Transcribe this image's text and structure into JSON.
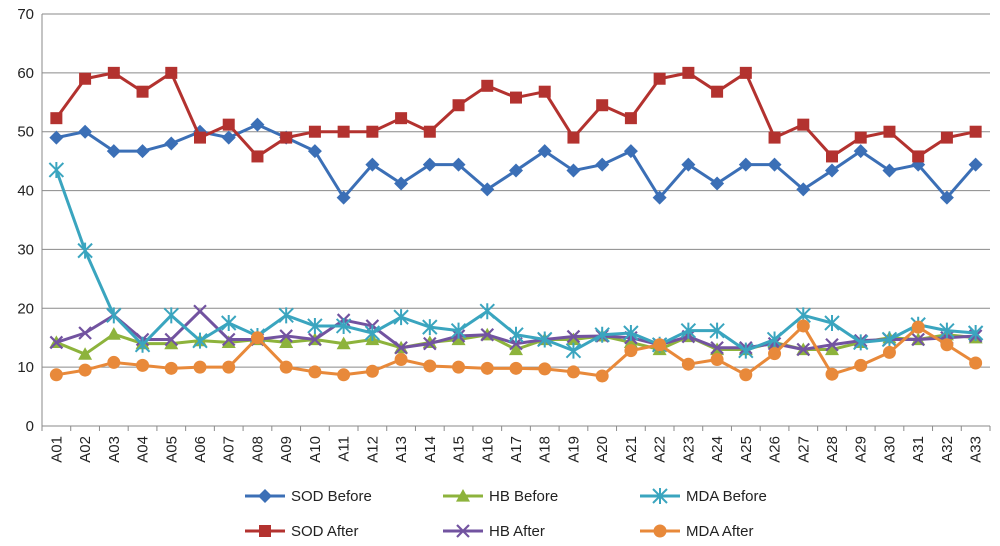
{
  "chart_data": {
    "type": "line",
    "title": "",
    "xlabel": "",
    "ylabel": "",
    "ylim": [
      0,
      70
    ],
    "yticks": [
      0,
      10,
      20,
      30,
      40,
      50,
      60,
      70
    ],
    "grid": "horizontal",
    "legend_position": "bottom",
    "categories": [
      "A01",
      "A02",
      "A03",
      "A04",
      "A05",
      "A06",
      "A07",
      "A08",
      "A09",
      "A10",
      "A11",
      "A12",
      "A13",
      "A14",
      "A15",
      "A16",
      "A17",
      "A18",
      "A19",
      "A20",
      "A21",
      "A22",
      "A23",
      "A24",
      "A25",
      "A26",
      "A27",
      "A28",
      "A29",
      "A30",
      "A31",
      "A32",
      "A33"
    ],
    "series": [
      {
        "name": "SOD Before",
        "color": "#3b6fb6",
        "marker": "diamond",
        "values": [
          49,
          50,
          46.7,
          46.7,
          48,
          50,
          49,
          51.2,
          49,
          46.7,
          38.8,
          44.4,
          41.2,
          44.4,
          44.4,
          40.2,
          43.4,
          46.7,
          43.4,
          44.4,
          46.7,
          38.8,
          44.4,
          41.2,
          44.4,
          44.4,
          40.2,
          43.4,
          46.7,
          43.4,
          44.4,
          38.8,
          44.4
        ]
      },
      {
        "name": "SOD After",
        "color": "#b3322f",
        "marker": "square",
        "values": [
          52.3,
          59,
          60,
          56.8,
          60,
          49,
          51.2,
          45.8,
          49,
          50,
          50,
          50,
          52.3,
          50,
          54.5,
          57.8,
          55.8,
          56.8,
          49,
          54.5,
          52.3,
          59,
          60,
          56.8,
          60,
          49,
          51.2,
          45.8,
          49,
          50,
          45.8,
          49,
          50
        ]
      },
      {
        "name": "HB Before",
        "color": "#8db33c",
        "marker": "triangle",
        "values": [
          14.2,
          12.2,
          15.6,
          14,
          14,
          14.5,
          14.2,
          14.7,
          14.2,
          14.7,
          14,
          14.7,
          13.3,
          14.2,
          14.7,
          15.5,
          13,
          14.7,
          14.7,
          15.3,
          14.2,
          13,
          15.2,
          13,
          13,
          14.2,
          13,
          13,
          14.2,
          15,
          14.7,
          15.5,
          15
        ]
      },
      {
        "name": "HB After",
        "color": "#7253a0",
        "marker": "x",
        "values": [
          14.2,
          15.8,
          18.8,
          14.7,
          14.7,
          19.5,
          14.7,
          14.7,
          15.3,
          14.7,
          18,
          17,
          13.3,
          14,
          15.3,
          15.5,
          14,
          14.7,
          15.2,
          15.3,
          15,
          13.8,
          15.2,
          13.3,
          13.3,
          14,
          13,
          13.8,
          14.5,
          14.7,
          14.7,
          15,
          15.3
        ]
      },
      {
        "name": "MDA Before",
        "color": "#3aa5bf",
        "marker": "star",
        "values": [
          43.5,
          29.8,
          18.8,
          13.8,
          18.8,
          14.5,
          17.5,
          15.3,
          18.8,
          17,
          17,
          15.8,
          18.5,
          16.8,
          16.2,
          19.5,
          15.5,
          14.7,
          12.8,
          15.5,
          15.8,
          13.8,
          16.2,
          16.2,
          12.8,
          14.7,
          18.8,
          17.5,
          14.2,
          14.7,
          17.2,
          16.2,
          15.8
        ]
      },
      {
        "name": "MDA After",
        "color": "#e8893a",
        "marker": "circle",
        "values": [
          8.7,
          9.5,
          10.8,
          10.3,
          9.8,
          10,
          10,
          15,
          10,
          9.2,
          8.7,
          9.3,
          11.3,
          10.2,
          10,
          9.8,
          9.8,
          9.7,
          9.2,
          8.5,
          12.8,
          13.8,
          10.5,
          11.3,
          8.7,
          12.3,
          17,
          8.8,
          10.3,
          12.5,
          16.8,
          13.8,
          10.7
        ]
      }
    ]
  }
}
